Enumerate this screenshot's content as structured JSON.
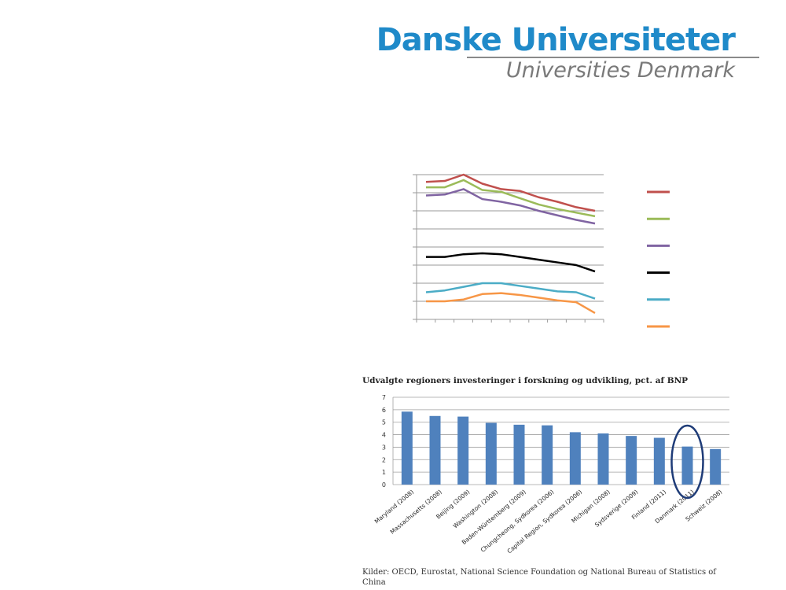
{
  "logo": {
    "primary": "Danske Universiteter",
    "secondary": "Universities Denmark"
  },
  "colors": {
    "brand": "#1f8ac9",
    "bar": "#4f81bd",
    "highlight": "#1f3c78"
  },
  "chart_data": [
    {
      "type": "line",
      "title": "",
      "xlabel": "",
      "ylabel": "",
      "x": [
        1,
        2,
        3,
        4,
        5,
        6,
        7,
        8,
        9,
        10
      ],
      "ylim": [
        0,
        8
      ],
      "grid": true,
      "legend": "right",
      "series": [
        {
          "name": "",
          "color": "#c0504d",
          "values": [
            7.6,
            7.65,
            8.0,
            7.5,
            7.2,
            7.1,
            6.75,
            6.5,
            6.2,
            6.0
          ]
        },
        {
          "name": "",
          "color": "#9bbb59",
          "values": [
            7.3,
            7.3,
            7.7,
            7.15,
            7.05,
            6.7,
            6.35,
            6.1,
            5.9,
            5.7
          ]
        },
        {
          "name": "",
          "color": "#8064a2",
          "values": [
            6.85,
            6.9,
            7.2,
            6.65,
            6.5,
            6.3,
            6.0,
            5.75,
            5.5,
            5.3
          ]
        },
        {
          "name": "",
          "color": "#000000",
          "values": [
            3.45,
            3.45,
            3.6,
            3.65,
            3.6,
            3.45,
            3.3,
            3.15,
            3.0,
            2.65
          ]
        },
        {
          "name": "",
          "color": "#4bacc6",
          "values": [
            1.5,
            1.6,
            1.8,
            2.0,
            2.0,
            1.85,
            1.7,
            1.55,
            1.5,
            1.15
          ]
        },
        {
          "name": "",
          "color": "#f79646",
          "values": [
            1.0,
            1.0,
            1.1,
            1.4,
            1.45,
            1.35,
            1.2,
            1.05,
            0.95,
            0.35
          ]
        }
      ]
    },
    {
      "type": "bar",
      "title": "Udvalgte regioners investeringer i forskning og udvikling, pct. af BNP",
      "xlabel": "",
      "ylabel": "",
      "ylim": [
        0,
        7
      ],
      "yticks": [
        "0",
        "1",
        "2",
        "3",
        "4",
        "5",
        "6",
        "7"
      ],
      "grid": true,
      "categories": [
        "Maryland (2008)",
        "Massachusetts (2008)",
        "Beijing (2009)",
        "Washington (2008)",
        "Baden-Württemberg (2009)",
        "Chungcheong, Sydkorea (2006)",
        "Capital Region, Sydkorea (2006)",
        "Michigan (2008)",
        "Sydsverige (2009)",
        "Finland (2011)",
        "Danmark (2011)",
        "Schweiz (2008)"
      ],
      "values": [
        5.85,
        5.5,
        5.45,
        4.95,
        4.8,
        4.75,
        4.2,
        4.1,
        3.9,
        3.75,
        3.05,
        2.85
      ],
      "annotation": "Danmark (2011)"
    }
  ],
  "sources": "Kilder: OECD, Eurostat, National Science Foundation og National Bureau of Statistics of China"
}
